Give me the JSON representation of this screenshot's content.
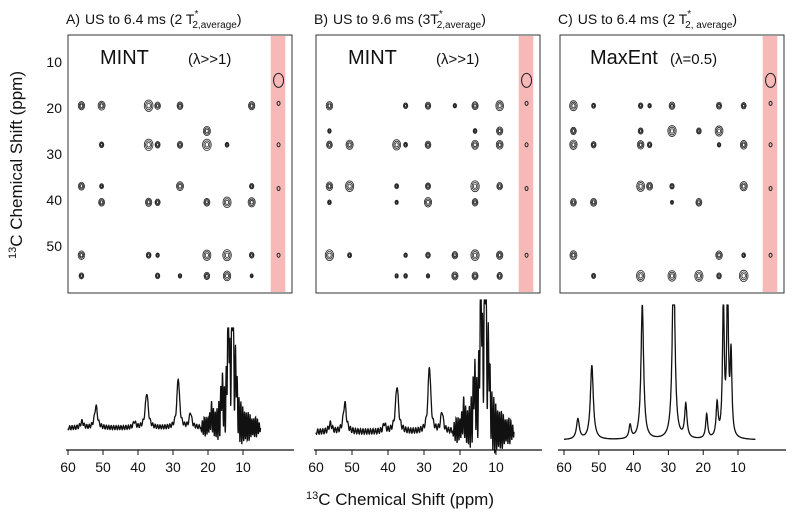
{
  "panels": [
    {
      "label": "A)",
      "title": "US to 6.4 ms (2 T",
      "sup": "*",
      "sub": "2,average",
      "close": ")",
      "method": "MINT",
      "param": "(λ>>1)"
    },
    {
      "label": "B)",
      "title": "US  to 9.6 ms (3T",
      "sup": "*",
      "sub": "2,average",
      "close": ")",
      "method": "MINT",
      "param": "(λ>>1)"
    },
    {
      "label": "C)",
      "title": "US to 6.4 ms (2 T",
      "sup": "*",
      "sub": "2, average",
      "close": ")",
      "method": "MaxEnt",
      "param": "(λ=0.5)"
    }
  ],
  "y_axis": {
    "isotope": "13",
    "label": "C Chemical Shift (ppm)",
    "ticks": [
      10,
      20,
      30,
      40,
      50
    ]
  },
  "x_axis": {
    "isotope": "13",
    "label": "C Chemical Shift (ppm)",
    "ticks": [
      60,
      50,
      40,
      30,
      20,
      10
    ]
  }
}
